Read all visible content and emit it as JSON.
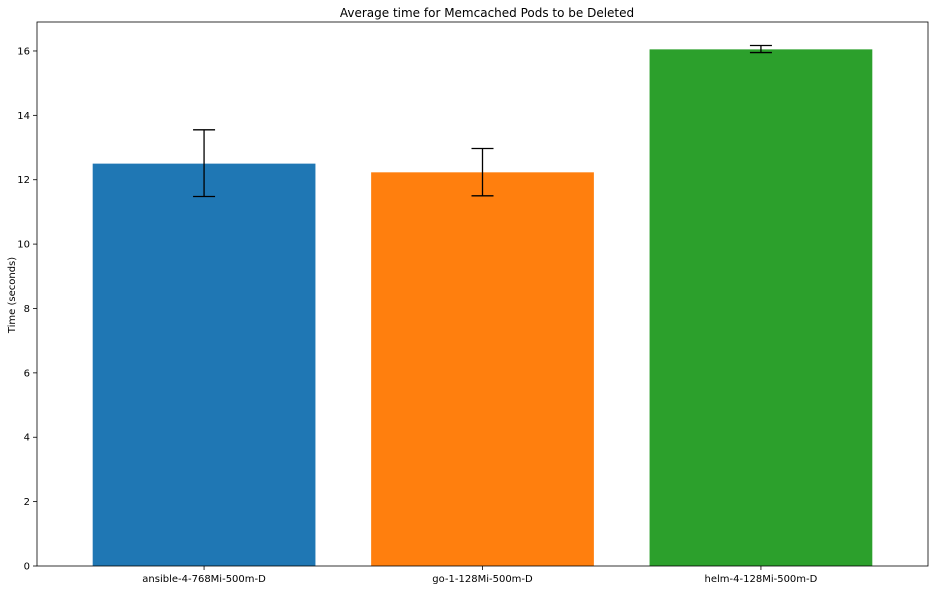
{
  "chart_data": {
    "type": "bar",
    "title": "Average time for Memcached Pods to be Deleted",
    "xlabel": "",
    "ylabel": "Time (seconds)",
    "categories": [
      "ansible-4-768Mi-500m-D",
      "go-1-128Mi-500m-D",
      "helm-4-128Mi-500m-D"
    ],
    "values": [
      12.5,
      12.23,
      16.05
    ],
    "error_low": [
      11.48,
      11.5,
      15.95
    ],
    "error_high": [
      13.55,
      12.97,
      16.17
    ],
    "colors": [
      "#1f77b4",
      "#ff7f0e",
      "#2ca02c"
    ],
    "ylim": [
      0,
      16.9
    ],
    "yticks": [
      0,
      2,
      4,
      6,
      8,
      10,
      12,
      14,
      16
    ],
    "grid": false,
    "legend": "none"
  }
}
